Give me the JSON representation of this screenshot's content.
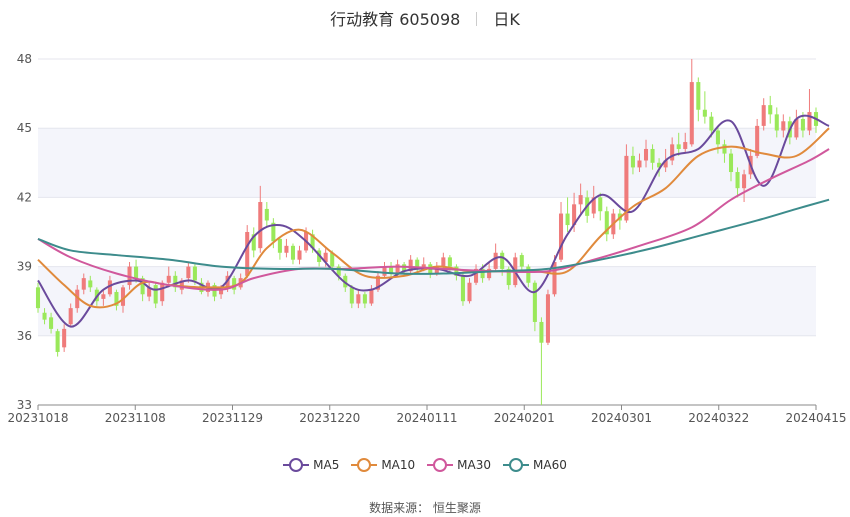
{
  "header": {
    "title": "行动教育 605098",
    "period": "日K"
  },
  "source": "数据来源：  恒生聚源",
  "chart_data": {
    "type": "candlestick",
    "title": "行动教育 605098",
    "period": "日K",
    "ylim": [
      33,
      48
    ],
    "yticks": [
      "33",
      "36",
      "39",
      "42",
      "45",
      "48"
    ],
    "xticks": [
      "20231018",
      "20231108",
      "20231129",
      "20231220",
      "20240111",
      "20240201",
      "20240301",
      "20240322",
      "20240415"
    ],
    "up_color": "#ef7b7b",
    "down_color": "#9ae85a",
    "candles": [
      [
        38.1,
        37.2,
        38.3,
        37.0
      ],
      [
        37.0,
        36.7,
        37.2,
        36.5
      ],
      [
        36.8,
        36.3,
        37.0,
        36.1
      ],
      [
        36.2,
        35.3,
        36.3,
        35.1
      ],
      [
        35.5,
        36.3,
        36.5,
        35.3
      ],
      [
        36.5,
        37.2,
        37.4,
        36.4
      ],
      [
        37.2,
        38.0,
        38.2,
        37.0
      ],
      [
        38.0,
        38.5,
        38.7,
        37.8
      ],
      [
        38.4,
        38.1,
        38.6,
        37.9
      ],
      [
        38.0,
        37.5,
        38.1,
        37.3
      ],
      [
        37.6,
        37.8,
        38.0,
        37.3
      ],
      [
        37.8,
        38.4,
        38.6,
        37.7
      ],
      [
        37.9,
        37.3,
        38.0,
        37.1
      ],
      [
        37.3,
        38.1,
        38.2,
        37.0
      ],
      [
        38.2,
        39.0,
        39.2,
        38.0
      ],
      [
        39.0,
        38.5,
        39.3,
        38.3
      ],
      [
        38.5,
        37.8,
        38.6,
        37.5
      ],
      [
        37.7,
        38.1,
        38.3,
        37.5
      ],
      [
        38.2,
        37.4,
        38.3,
        37.2
      ],
      [
        37.5,
        38.3,
        38.4,
        37.3
      ],
      [
        38.3,
        38.6,
        39.0,
        38.1
      ],
      [
        38.6,
        38.1,
        38.8,
        37.9
      ],
      [
        38.0,
        38.4,
        38.5,
        37.8
      ],
      [
        38.5,
        39.0,
        39.2,
        38.3
      ],
      [
        39.0,
        38.4,
        39.1,
        38.2
      ],
      [
        38.3,
        37.9,
        38.5,
        37.8
      ],
      [
        37.9,
        38.3,
        38.4,
        37.7
      ],
      [
        38.2,
        37.7,
        38.3,
        37.5
      ],
      [
        37.8,
        38.1,
        38.2,
        37.6
      ],
      [
        38.1,
        38.6,
        38.8,
        37.9
      ],
      [
        38.5,
        38.0,
        38.6,
        37.8
      ],
      [
        38.1,
        38.5,
        38.7,
        38.0
      ],
      [
        38.6,
        40.5,
        40.8,
        38.5
      ],
      [
        40.4,
        39.7,
        40.7,
        39.4
      ],
      [
        39.8,
        41.8,
        42.5,
        39.6
      ],
      [
        41.5,
        41.0,
        41.8,
        40.7
      ],
      [
        40.9,
        40.1,
        41.1,
        39.8
      ],
      [
        40.2,
        39.6,
        40.3,
        39.3
      ],
      [
        39.6,
        39.9,
        40.2,
        39.4
      ],
      [
        39.9,
        39.3,
        40.0,
        39.1
      ],
      [
        39.3,
        39.7,
        39.9,
        39.1
      ],
      [
        39.7,
        40.5,
        40.7,
        39.6
      ],
      [
        40.4,
        39.8,
        40.6,
        39.6
      ],
      [
        39.7,
        39.2,
        39.8,
        39.0
      ],
      [
        39.2,
        39.6,
        39.8,
        39.0
      ],
      [
        39.6,
        39.0,
        39.7,
        38.8
      ],
      [
        39.0,
        38.6,
        39.1,
        38.4
      ],
      [
        38.6,
        38.1,
        38.7,
        37.9
      ],
      [
        38.1,
        37.4,
        38.2,
        37.2
      ],
      [
        37.4,
        37.8,
        38.0,
        37.2
      ],
      [
        37.8,
        37.4,
        37.9,
        37.2
      ],
      [
        37.4,
        38.0,
        38.2,
        37.3
      ],
      [
        38.0,
        38.6,
        38.8,
        37.9
      ],
      [
        38.6,
        39.0,
        39.2,
        38.5
      ],
      [
        39.0,
        38.7,
        39.2,
        38.5
      ],
      [
        38.7,
        39.1,
        39.3,
        38.6
      ],
      [
        39.1,
        38.8,
        39.2,
        38.6
      ],
      [
        38.8,
        39.3,
        39.5,
        38.7
      ],
      [
        39.3,
        38.9,
        39.4,
        38.7
      ],
      [
        38.9,
        39.1,
        39.4,
        38.8
      ],
      [
        39.1,
        38.7,
        39.2,
        38.5
      ],
      [
        38.7,
        39.0,
        39.2,
        38.6
      ],
      [
        39.0,
        39.4,
        39.6,
        38.9
      ],
      [
        39.4,
        39.0,
        39.5,
        38.8
      ],
      [
        39.0,
        38.6,
        39.1,
        38.4
      ],
      [
        38.6,
        37.5,
        38.7,
        37.3
      ],
      [
        37.5,
        38.3,
        38.5,
        37.4
      ],
      [
        38.3,
        38.9,
        39.1,
        38.2
      ],
      [
        38.9,
        38.5,
        39.1,
        38.3
      ],
      [
        38.5,
        38.9,
        39.2,
        38.4
      ],
      [
        38.9,
        39.6,
        40.0,
        38.8
      ],
      [
        39.6,
        38.9,
        39.7,
        38.6
      ],
      [
        38.9,
        38.2,
        39.0,
        38.0
      ],
      [
        38.2,
        39.4,
        39.6,
        38.1
      ],
      [
        39.5,
        39.0,
        39.6,
        38.8
      ],
      [
        39.0,
        38.3,
        39.1,
        38.1
      ],
      [
        38.3,
        36.6,
        38.4,
        36.2
      ],
      [
        36.6,
        35.7,
        36.8,
        33.0
      ],
      [
        35.7,
        37.8,
        38.0,
        35.6
      ],
      [
        37.8,
        39.2,
        39.5,
        37.7
      ],
      [
        39.3,
        41.3,
        41.8,
        39.2
      ],
      [
        41.3,
        40.8,
        42.0,
        40.5
      ],
      [
        40.8,
        41.7,
        42.2,
        40.5
      ],
      [
        41.7,
        42.1,
        42.6,
        41.3
      ],
      [
        42.0,
        41.2,
        42.3,
        40.9
      ],
      [
        41.3,
        42.0,
        42.5,
        41.1
      ],
      [
        42.0,
        41.4,
        42.2,
        41.0
      ],
      [
        41.4,
        40.4,
        41.6,
        40.1
      ],
      [
        40.4,
        41.3,
        41.5,
        40.2
      ],
      [
        41.3,
        41.0,
        41.5,
        40.6
      ],
      [
        41.0,
        43.8,
        44.3,
        40.9
      ],
      [
        43.8,
        43.3,
        44.2,
        43.0
      ],
      [
        43.3,
        43.6,
        43.9,
        43.1
      ],
      [
        43.6,
        44.1,
        44.5,
        43.3
      ],
      [
        44.1,
        43.5,
        44.3,
        43.2
      ],
      [
        43.5,
        43.3,
        43.7,
        42.9
      ],
      [
        43.3,
        43.6,
        44.1,
        43.1
      ],
      [
        43.6,
        44.3,
        44.6,
        43.4
      ],
      [
        44.3,
        44.1,
        44.8,
        43.8
      ],
      [
        44.1,
        44.4,
        44.8,
        43.9
      ],
      [
        44.3,
        47.0,
        48.0,
        44.2
      ],
      [
        47.0,
        45.8,
        47.2,
        45.3
      ],
      [
        45.8,
        45.5,
        46.6,
        45.2
      ],
      [
        45.5,
        44.9,
        45.7,
        44.6
      ],
      [
        44.9,
        44.3,
        45.1,
        43.9
      ],
      [
        44.3,
        43.9,
        44.5,
        43.5
      ],
      [
        43.9,
        43.1,
        44.1,
        42.7
      ],
      [
        43.1,
        42.4,
        43.3,
        42.0
      ],
      [
        42.4,
        43.0,
        43.2,
        41.8
      ],
      [
        43.0,
        43.8,
        44.1,
        42.8
      ],
      [
        43.8,
        45.1,
        45.4,
        43.7
      ],
      [
        45.1,
        46.0,
        46.3,
        44.9
      ],
      [
        46.0,
        45.6,
        46.4,
        45.2
      ],
      [
        45.6,
        44.9,
        45.9,
        44.6
      ],
      [
        44.9,
        45.3,
        45.6,
        44.6
      ],
      [
        45.3,
        44.6,
        45.5,
        44.3
      ],
      [
        44.6,
        45.4,
        45.8,
        44.5
      ],
      [
        45.4,
        44.9,
        45.7,
        44.6
      ],
      [
        44.9,
        45.7,
        46.7,
        44.7
      ],
      [
        45.7,
        45.1,
        45.9,
        44.8
      ]
    ],
    "series": [
      {
        "name": "MA5",
        "color": "#6a4a9c",
        "values": [
          [
            0,
            38.4
          ],
          [
            5,
            36.4
          ],
          [
            10,
            38.0
          ],
          [
            15,
            38.4
          ],
          [
            18,
            38.0
          ],
          [
            23,
            38.4
          ],
          [
            28,
            38.1
          ],
          [
            33,
            40.3
          ],
          [
            37,
            40.8
          ],
          [
            41,
            40.1
          ],
          [
            47,
            38.3
          ],
          [
            51,
            38.0
          ],
          [
            56,
            38.8
          ],
          [
            61,
            38.9
          ],
          [
            66,
            38.6
          ],
          [
            71,
            39.4
          ],
          [
            76,
            37.9
          ],
          [
            81,
            40.4
          ],
          [
            86,
            42.1
          ],
          [
            91,
            41.4
          ],
          [
            96,
            43.6
          ],
          [
            101,
            44.1
          ],
          [
            106,
            45.3
          ],
          [
            111,
            42.5
          ],
          [
            116,
            45.4
          ],
          [
            121,
            45.1
          ]
        ]
      },
      {
        "name": "MA10",
        "color": "#e08a3c",
        "values": [
          [
            0,
            39.3
          ],
          [
            4,
            38.2
          ],
          [
            8,
            37.3
          ],
          [
            12,
            37.4
          ],
          [
            16,
            38.3
          ],
          [
            20,
            38.2
          ],
          [
            26,
            38.1
          ],
          [
            31,
            38.3
          ],
          [
            35,
            39.8
          ],
          [
            40,
            40.6
          ],
          [
            45,
            39.6
          ],
          [
            50,
            38.6
          ],
          [
            56,
            38.6
          ],
          [
            61,
            39.0
          ],
          [
            66,
            38.8
          ],
          [
            71,
            38.8
          ],
          [
            76,
            38.8
          ],
          [
            81,
            38.8
          ],
          [
            86,
            40.3
          ],
          [
            91,
            41.6
          ],
          [
            96,
            42.4
          ],
          [
            101,
            43.8
          ],
          [
            106,
            44.2
          ],
          [
            111,
            43.9
          ],
          [
            116,
            43.8
          ],
          [
            121,
            45.0
          ]
        ]
      },
      {
        "name": "MA30",
        "color": "#d0589c",
        "values": [
          [
            0,
            40.2
          ],
          [
            5,
            39.4
          ],
          [
            12,
            38.7
          ],
          [
            20,
            38.2
          ],
          [
            28,
            38.0
          ],
          [
            33,
            38.5
          ],
          [
            40,
            38.9
          ],
          [
            47,
            38.9
          ],
          [
            55,
            39.0
          ],
          [
            62,
            38.9
          ],
          [
            70,
            38.8
          ],
          [
            78,
            38.8
          ],
          [
            85,
            39.3
          ],
          [
            92,
            39.9
          ],
          [
            100,
            40.7
          ],
          [
            106,
            41.9
          ],
          [
            112,
            42.8
          ],
          [
            118,
            43.6
          ],
          [
            121,
            44.1
          ]
        ]
      },
      {
        "name": "MA60",
        "color": "#3d8c8c",
        "values": [
          [
            0,
            40.2
          ],
          [
            5,
            39.7
          ],
          [
            12,
            39.5
          ],
          [
            20,
            39.3
          ],
          [
            28,
            39.0
          ],
          [
            36,
            38.9
          ],
          [
            45,
            38.9
          ],
          [
            55,
            38.7
          ],
          [
            62,
            38.7
          ],
          [
            70,
            38.8
          ],
          [
            78,
            38.9
          ],
          [
            86,
            39.3
          ],
          [
            94,
            39.8
          ],
          [
            102,
            40.4
          ],
          [
            110,
            41.0
          ],
          [
            116,
            41.5
          ],
          [
            121,
            41.9
          ]
        ]
      }
    ]
  }
}
